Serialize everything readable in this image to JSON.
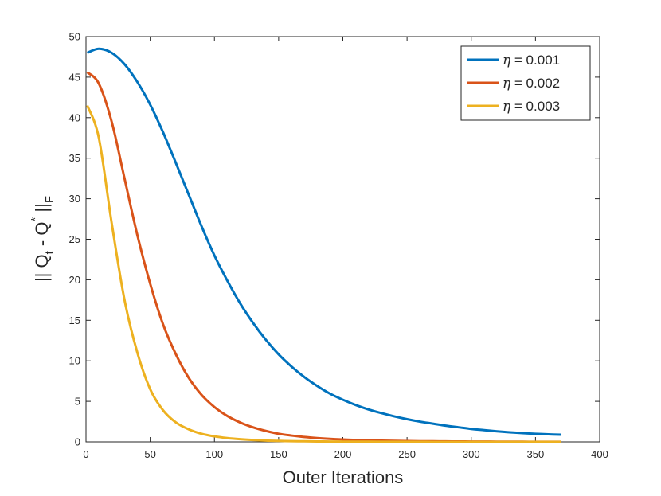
{
  "chart_data": {
    "type": "line",
    "xlabel": "Outer Iterations",
    "ylabel": "|| Q_t - Q^* ||_F",
    "ylabel_parts": {
      "a": "|| Q",
      "a_sub": "t",
      "b": " - Q",
      "b_sup": "*",
      "c": " ||",
      "c_sub": "F"
    },
    "xlim": [
      0,
      400
    ],
    "ylim": [
      0,
      50
    ],
    "xticks": [
      "0",
      "50",
      "100",
      "150",
      "200",
      "250",
      "300",
      "350",
      "400"
    ],
    "yticks": [
      "0",
      "5",
      "10",
      "15",
      "20",
      "25",
      "30",
      "35",
      "40",
      "45",
      "50"
    ],
    "grid": false,
    "legend_position": "top-right",
    "x": [
      1,
      10,
      20,
      30,
      40,
      50,
      60,
      70,
      80,
      90,
      100,
      110,
      120,
      130,
      140,
      150,
      160,
      170,
      180,
      190,
      200,
      210,
      220,
      230,
      240,
      250,
      260,
      270,
      280,
      290,
      300,
      310,
      320,
      330,
      340,
      350,
      360,
      370
    ],
    "series": [
      {
        "name_prefix": "η",
        "name_value": " = 0.001",
        "color": "#0072BD",
        "values": [
          48.0,
          48.5,
          48.0,
          46.6,
          44.4,
          41.6,
          38.2,
          34.4,
          30.5,
          26.6,
          23.0,
          19.9,
          17.1,
          14.7,
          12.6,
          10.8,
          9.3,
          8.0,
          6.9,
          5.95,
          5.2,
          4.55,
          4.0,
          3.55,
          3.15,
          2.8,
          2.5,
          2.25,
          2.0,
          1.8,
          1.6,
          1.45,
          1.3,
          1.18,
          1.08,
          1.0,
          0.93,
          0.88
        ]
      },
      {
        "name_prefix": "η",
        "name_value": " = 0.002",
        "color": "#D95319",
        "values": [
          45.6,
          44.2,
          39.5,
          32.5,
          25.5,
          19.5,
          14.5,
          10.8,
          7.9,
          5.8,
          4.3,
          3.2,
          2.4,
          1.8,
          1.35,
          1.0,
          0.78,
          0.6,
          0.47,
          0.37,
          0.29,
          0.23,
          0.18,
          0.15,
          0.12,
          0.1,
          0.08,
          0.07,
          0.06,
          0.05,
          0.04,
          0.035,
          0.03,
          0.025,
          0.02,
          0.015,
          0.012,
          0.01
        ]
      },
      {
        "name_prefix": "η",
        "name_value": " = 0.003",
        "color": "#EDB120",
        "values": [
          41.5,
          37.5,
          27.0,
          17.5,
          11.0,
          6.5,
          3.9,
          2.4,
          1.55,
          1.0,
          0.68,
          0.47,
          0.33,
          0.23,
          0.16,
          0.12,
          0.09,
          0.07,
          0.05,
          0.04,
          0.03,
          0.025,
          0.02,
          0.015,
          0.012,
          0.01,
          0.008,
          0.006,
          0.005,
          0.004,
          0.003,
          0.002,
          0.002,
          0.001,
          0.001,
          0.001,
          0.001,
          0.001
        ]
      }
    ]
  }
}
